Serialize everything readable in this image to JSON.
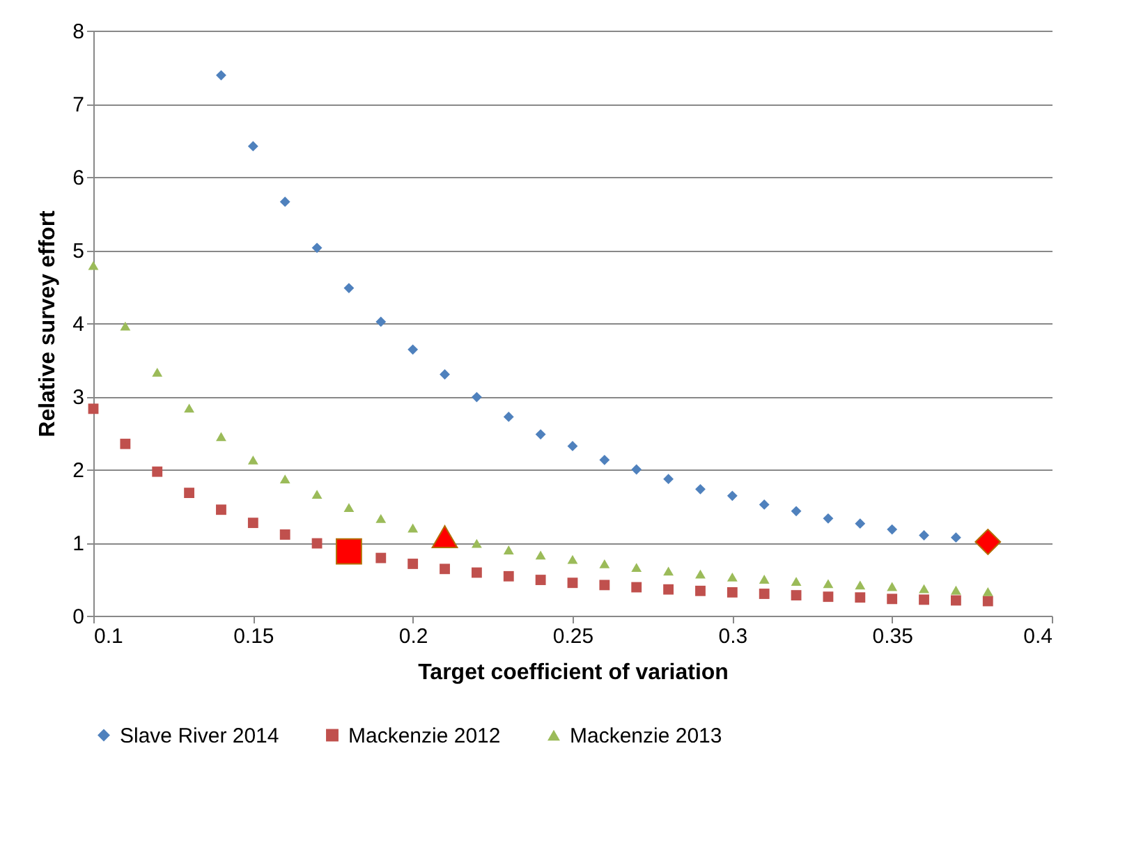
{
  "chart_data": {
    "type": "scatter",
    "xlabel": "Target coefficient of variation",
    "ylabel": "Relative survey effort",
    "xlim": [
      0.1,
      0.4
    ],
    "xticks": [
      0.1,
      0.15,
      0.2,
      0.25,
      0.3,
      0.35,
      0.4
    ],
    "ylim": [
      0,
      8
    ],
    "yticks": [
      0,
      1,
      2,
      3,
      4,
      5,
      6,
      7,
      8
    ],
    "grid": "y",
    "legend": "bottom",
    "series": [
      {
        "name": "Slave River 2014",
        "color": "#4f81bd",
        "marker": "diamond",
        "x": [
          0.14,
          0.15,
          0.16,
          0.17,
          0.18,
          0.19,
          0.2,
          0.21,
          0.22,
          0.23,
          0.24,
          0.25,
          0.26,
          0.27,
          0.28,
          0.29,
          0.3,
          0.31,
          0.32,
          0.33,
          0.34,
          0.35,
          0.36,
          0.37
        ],
        "values": [
          7.39,
          6.42,
          5.66,
          5.03,
          4.48,
          4.02,
          3.64,
          3.3,
          2.99,
          2.72,
          2.48,
          2.32,
          2.13,
          2.0,
          1.87,
          1.73,
          1.64,
          1.52,
          1.43,
          1.33,
          1.26,
          1.18,
          1.1,
          1.07
        ]
      },
      {
        "name": "Mackenzie 2012",
        "color": "#c0504d",
        "marker": "square",
        "x": [
          0.1,
          0.11,
          0.12,
          0.13,
          0.14,
          0.15,
          0.16,
          0.17,
          0.19,
          0.2,
          0.21,
          0.22,
          0.23,
          0.24,
          0.25,
          0.26,
          0.27,
          0.28,
          0.29,
          0.3,
          0.31,
          0.32,
          0.33,
          0.34,
          0.35,
          0.36,
          0.37,
          0.38
        ],
        "values": [
          2.83,
          2.35,
          1.97,
          1.68,
          1.45,
          1.27,
          1.11,
          0.99,
          0.79,
          0.71,
          0.64,
          0.59,
          0.54,
          0.49,
          0.45,
          0.42,
          0.39,
          0.36,
          0.34,
          0.32,
          0.3,
          0.28,
          0.26,
          0.25,
          0.23,
          0.22,
          0.21,
          0.2
        ]
      },
      {
        "name": "Mackenzie 2013",
        "color": "#9bbb59",
        "marker": "triangle",
        "x": [
          0.1,
          0.11,
          0.12,
          0.13,
          0.14,
          0.15,
          0.16,
          0.17,
          0.18,
          0.19,
          0.2,
          0.22,
          0.23,
          0.24,
          0.25,
          0.26,
          0.27,
          0.28,
          0.29,
          0.3,
          0.31,
          0.32,
          0.33,
          0.34,
          0.35,
          0.36,
          0.37,
          0.38
        ],
        "values": [
          4.79,
          3.96,
          3.33,
          2.84,
          2.45,
          2.13,
          1.87,
          1.66,
          1.48,
          1.33,
          1.2,
          0.99,
          0.9,
          0.83,
          0.77,
          0.71,
          0.66,
          0.61,
          0.57,
          0.53,
          0.5,
          0.47,
          0.44,
          0.42,
          0.4,
          0.37,
          0.35,
          0.33
        ]
      },
      {
        "color": "#ff0000",
        "marker": "diamond",
        "x": [
          0.38
        ],
        "values": [
          1.01
        ]
      },
      {
        "color": "#ff0000",
        "marker": "square",
        "x": [
          0.18
        ],
        "values": [
          0.88
        ]
      },
      {
        "color": "#ff0000",
        "marker": "triangle",
        "x": [
          0.21
        ],
        "values": [
          1.08
        ]
      }
    ]
  }
}
